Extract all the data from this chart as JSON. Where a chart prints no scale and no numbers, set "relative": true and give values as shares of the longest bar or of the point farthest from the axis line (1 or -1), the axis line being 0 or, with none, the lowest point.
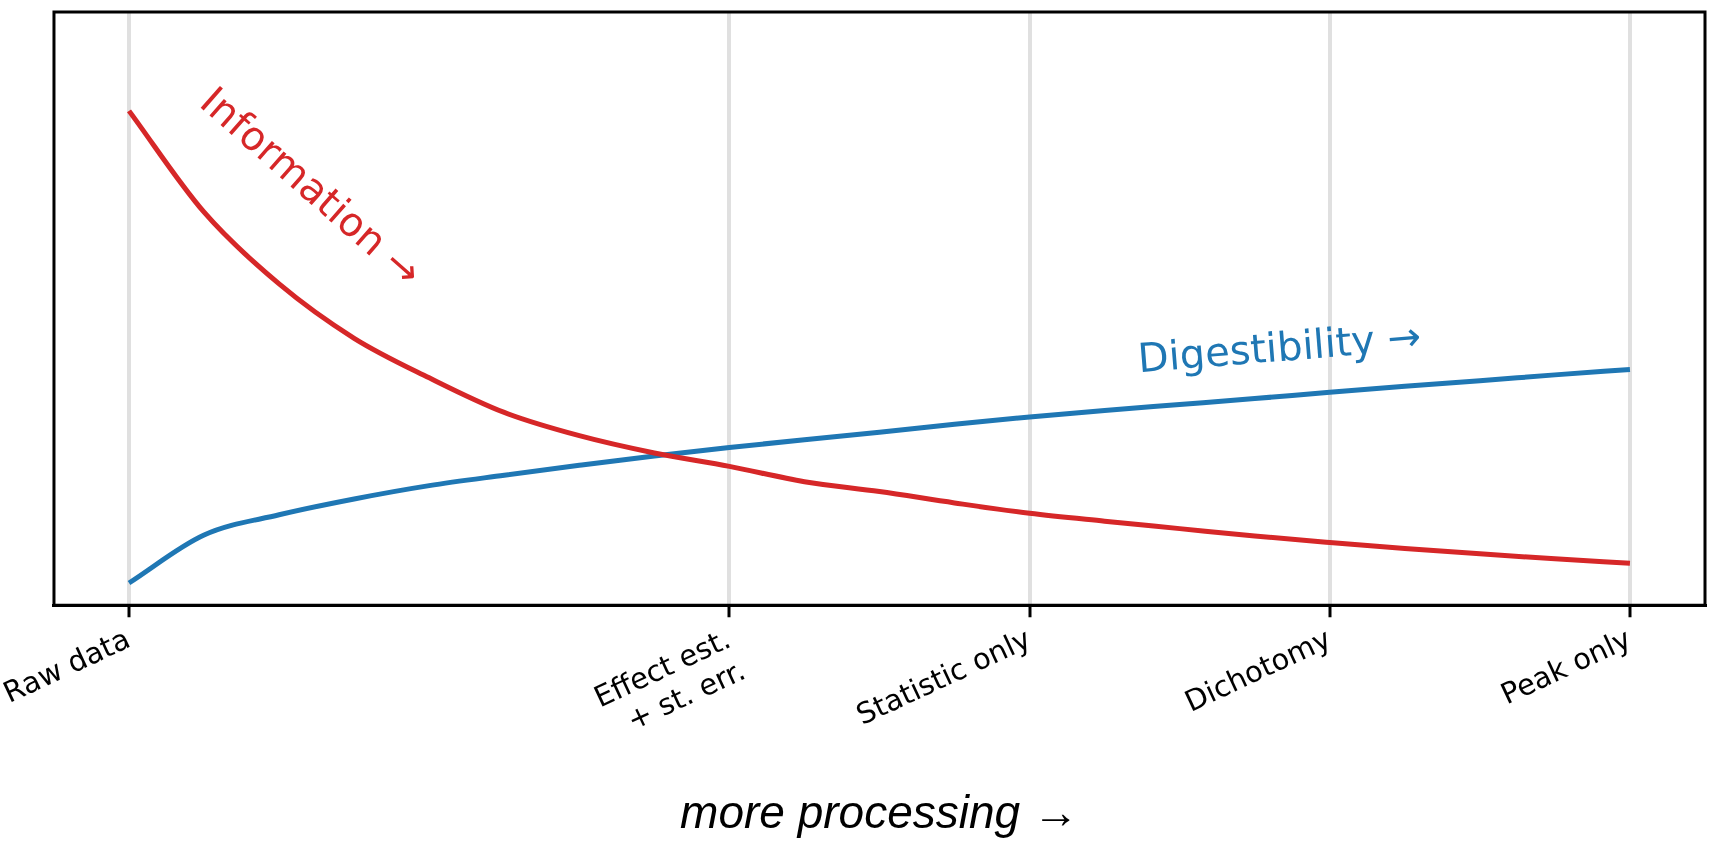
{
  "chart_data": {
    "type": "line",
    "relative": true,
    "xlabel": "more processing →",
    "categories": [
      "Raw data",
      null,
      null,
      null,
      null,
      null,
      null,
      null,
      "Effect est.\n+ st. err.",
      null,
      null,
      null,
      "Statistic only",
      null,
      null,
      null,
      "Dichotomy",
      null,
      null,
      null,
      "Peak only"
    ],
    "grid": "x",
    "legend": false,
    "marker": "none",
    "line_style": "solid",
    "series": [
      {
        "name": "Information →",
        "color": "#d62728",
        "values": [
          1,
          0.795,
          0.65,
          0.54,
          0.46,
          0.39,
          0.343,
          0.308,
          0.281,
          0.25,
          0.23,
          0.207,
          0.186,
          0.17,
          0.155,
          0.14,
          0.127,
          0.115,
          0.104,
          0.094,
          0.085
        ]
      },
      {
        "name": "Digestibility →",
        "color": "#1f77b4",
        "values": [
          0.045,
          0.142,
          0.183,
          0.215,
          0.242,
          0.263,
          0.283,
          0.302,
          0.319,
          0.335,
          0.35,
          0.366,
          0.381,
          0.394,
          0.406,
          0.418,
          0.431,
          0.443,
          0.454,
          0.466,
          0.477
        ]
      }
    ]
  }
}
